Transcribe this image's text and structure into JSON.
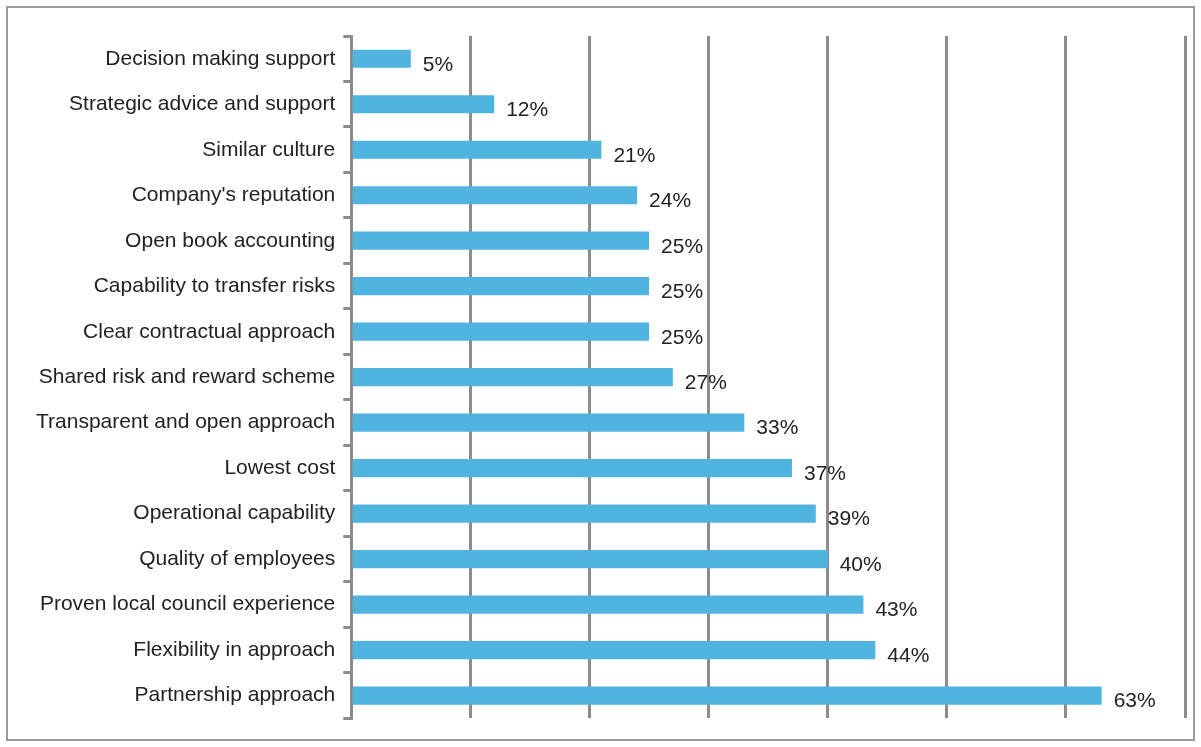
{
  "chart_data": {
    "type": "bar",
    "orientation": "horizontal",
    "categories": [
      "Decision making support",
      "Strategic advice and support",
      "Similar culture",
      "Company's reputation",
      "Open book accounting",
      "Capability to transfer risks",
      "Clear contractual approach",
      "Shared risk and reward scheme",
      "Transparent and open approach",
      "Lowest cost",
      "Operational capability",
      "Quality of employees",
      "Proven local council experience",
      "Flexibility in approach",
      "Partnership approach"
    ],
    "values": [
      5,
      12,
      21,
      24,
      25,
      25,
      25,
      27,
      33,
      37,
      39,
      40,
      43,
      44,
      63
    ],
    "value_labels": [
      "5%",
      "12%",
      "21%",
      "24%",
      "25%",
      "25%",
      "25%",
      "27%",
      "33%",
      "37%",
      "39%",
      "40%",
      "43%",
      "44%",
      "63%"
    ],
    "color": "#4fb4e0",
    "xlim": [
      0,
      70
    ],
    "xticks": [
      {
        "value": 0,
        "label": null
      },
      {
        "value": 10,
        "label": null
      },
      {
        "value": 20,
        "label": null
      },
      {
        "value": 30,
        "label": null
      },
      {
        "value": 40,
        "label": null
      },
      {
        "value": 50,
        "label": null
      },
      {
        "value": 60,
        "label": null
      },
      {
        "value": 70,
        "label": null
      }
    ],
    "grid": "x",
    "tick_labels": "y"
  }
}
